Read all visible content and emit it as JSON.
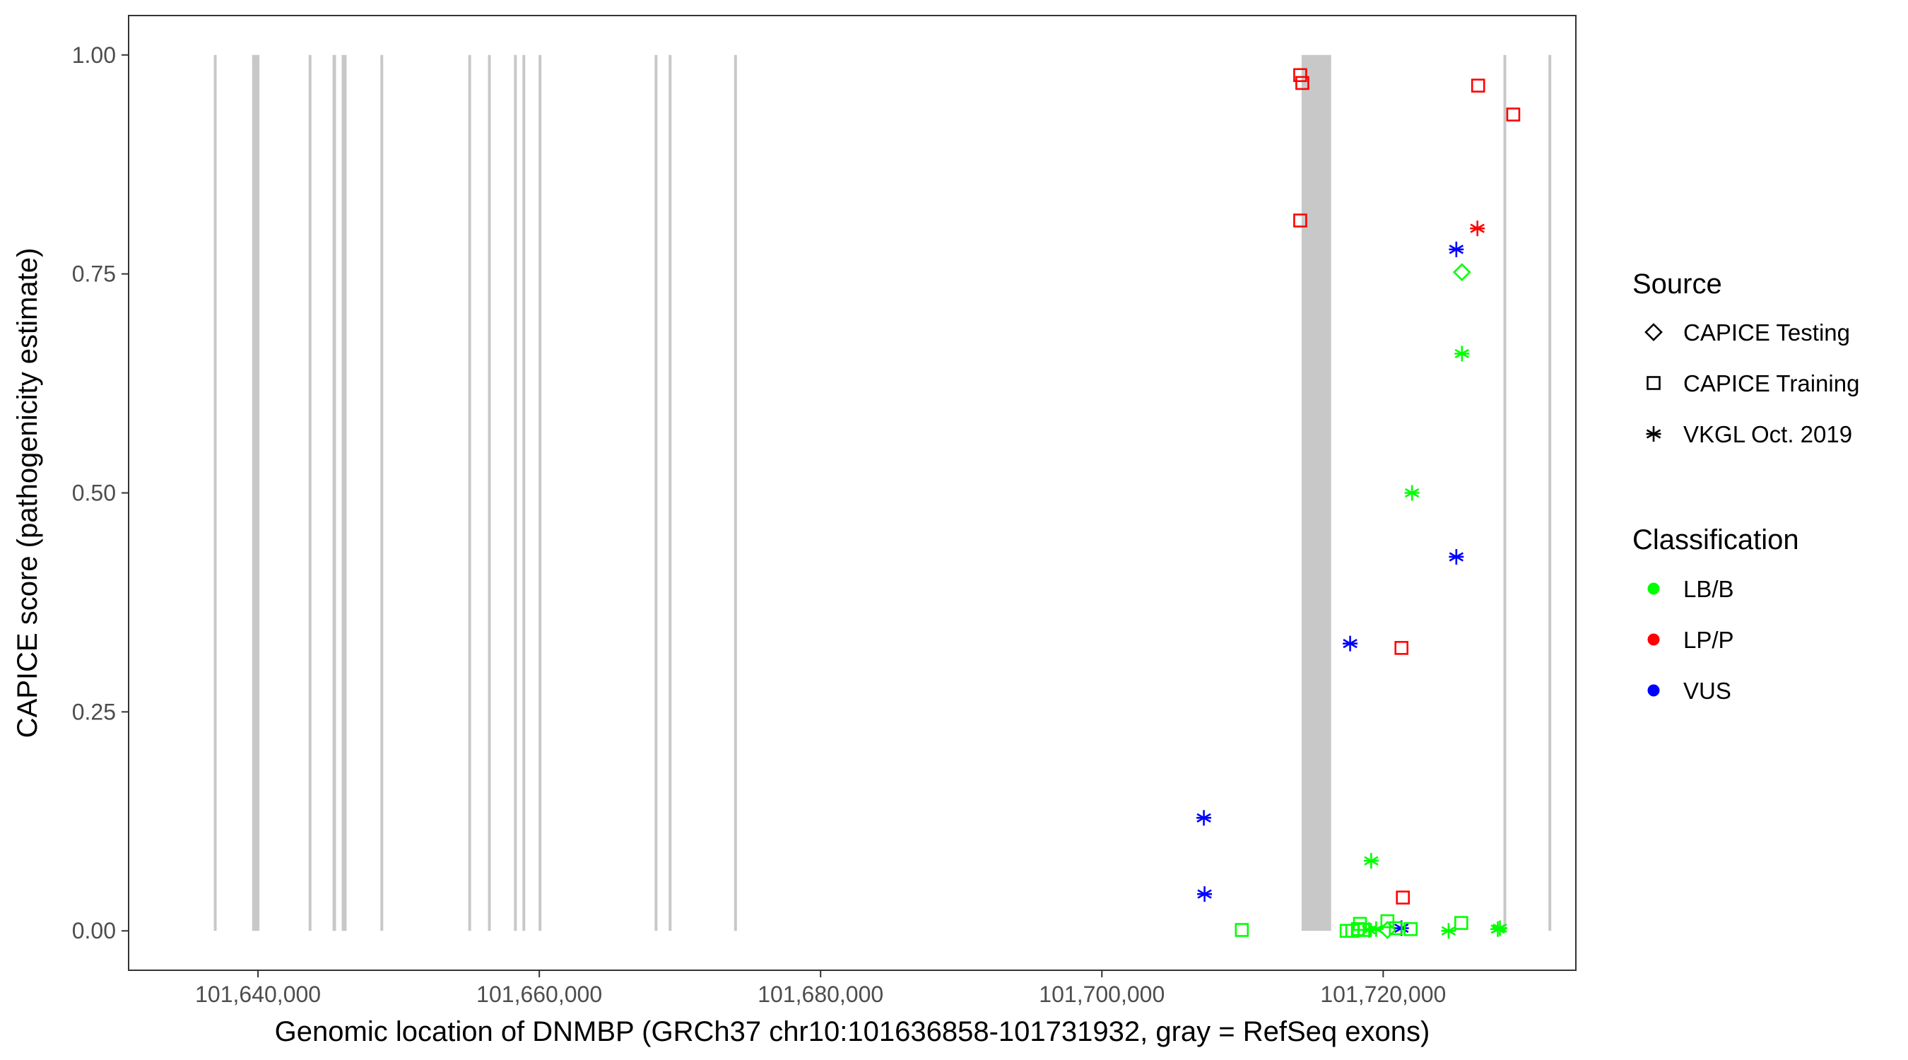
{
  "chart_data": {
    "type": "scatter",
    "xlabel": "Genomic location of DNMBP (GRCh37 chr10:101636858-101731932, gray = RefSeq exons)",
    "ylabel": "CAPICE score (pathogenicity estimate)",
    "xlim": [
      101630800,
      101733700
    ],
    "ylim": [
      -0.045,
      1.045
    ],
    "x_ticks": [
      101640000,
      101660000,
      101680000,
      101700000,
      101720000
    ],
    "x_tick_labels": [
      "101,640,000",
      "101,660,000",
      "101,680,000",
      "101,700,000",
      "101,720,000"
    ],
    "y_ticks": [
      0,
      0.25,
      0.5,
      0.75,
      1.0
    ],
    "y_tick_labels": [
      "0.00",
      "0.25",
      "0.50",
      "0.75",
      "1.00"
    ],
    "grid": false,
    "legend_position": "right",
    "exon_color": "#c8c8c8",
    "exons": [
      {
        "start": 101636858,
        "end": 101637050
      },
      {
        "start": 101639580,
        "end": 101640100
      },
      {
        "start": 101643600,
        "end": 101643800
      },
      {
        "start": 101645300,
        "end": 101645550
      },
      {
        "start": 101645950,
        "end": 101646300
      },
      {
        "start": 101648700,
        "end": 101648900
      },
      {
        "start": 101654950,
        "end": 101655150
      },
      {
        "start": 101656350,
        "end": 101656550
      },
      {
        "start": 101658200,
        "end": 101658400
      },
      {
        "start": 101658800,
        "end": 101659000
      },
      {
        "start": 101659950,
        "end": 101660150
      },
      {
        "start": 101668200,
        "end": 101668400
      },
      {
        "start": 101669200,
        "end": 101669400
      },
      {
        "start": 101673850,
        "end": 101674050
      },
      {
        "start": 101714200,
        "end": 101716300
      },
      {
        "start": 101728550,
        "end": 101728750
      },
      {
        "start": 101731750,
        "end": 101731932
      }
    ],
    "legends": {
      "source": {
        "title": "Source",
        "items": [
          {
            "label": "CAPICE Testing",
            "shape": "diamond"
          },
          {
            "label": "CAPICE Training",
            "shape": "square"
          },
          {
            "label": "VKGL Oct. 2019",
            "shape": "asterisk"
          }
        ]
      },
      "classification": {
        "title": "Classification",
        "items": [
          {
            "label": "LB/B",
            "color": "#00ff00"
          },
          {
            "label": "LP/P",
            "color": "#ff0000"
          },
          {
            "label": "VUS",
            "color": "#0000ff"
          }
        ]
      }
    },
    "series": [
      {
        "classification": "LP/P",
        "source": "CAPICE Training",
        "color": "#ff0000",
        "shape": "square",
        "points": [
          {
            "x": 101714100,
            "y": 0.977
          },
          {
            "x": 101714250,
            "y": 0.968
          },
          {
            "x": 101714100,
            "y": 0.811
          },
          {
            "x": 101726750,
            "y": 0.965
          },
          {
            "x": 101729250,
            "y": 0.932
          },
          {
            "x": 101721300,
            "y": 0.323
          },
          {
            "x": 101721400,
            "y": 0.038
          }
        ]
      },
      {
        "classification": "LP/P",
        "source": "VKGL Oct. 2019",
        "color": "#ff0000",
        "shape": "asterisk",
        "points": [
          {
            "x": 101726700,
            "y": 0.802
          }
        ]
      },
      {
        "classification": "VUS",
        "source": "VKGL Oct. 2019",
        "color": "#0000ff",
        "shape": "asterisk",
        "points": [
          {
            "x": 101725200,
            "y": 0.778
          },
          {
            "x": 101725200,
            "y": 0.427
          },
          {
            "x": 101717650,
            "y": 0.328
          },
          {
            "x": 101707250,
            "y": 0.129
          },
          {
            "x": 101707300,
            "y": 0.042
          },
          {
            "x": 101721300,
            "y": 0.003
          }
        ]
      },
      {
        "classification": "LB/B",
        "source": "CAPICE Testing",
        "color": "#00ff00",
        "shape": "diamond",
        "points": [
          {
            "x": 101725600,
            "y": 0.752
          },
          {
            "x": 101720300,
            "y": 0.001
          }
        ]
      },
      {
        "classification": "LB/B",
        "source": "VKGL Oct. 2019",
        "color": "#00ff00",
        "shape": "asterisk",
        "points": [
          {
            "x": 101725600,
            "y": 0.659
          },
          {
            "x": 101722050,
            "y": 0.5
          },
          {
            "x": 101719150,
            "y": 0.08
          },
          {
            "x": 101724650,
            "y": 0.0
          },
          {
            "x": 101728150,
            "y": 0.002
          },
          {
            "x": 101728300,
            "y": 0.003
          },
          {
            "x": 101719000,
            "y": 0.001
          },
          {
            "x": 101719500,
            "y": 0.002
          }
        ]
      },
      {
        "classification": "LB/B",
        "source": "CAPICE Training",
        "color": "#00ff00",
        "shape": "square",
        "points": [
          {
            "x": 101709950,
            "y": 0.001
          },
          {
            "x": 101717400,
            "y": 0.0
          },
          {
            "x": 101717800,
            "y": 0.0
          },
          {
            "x": 101718200,
            "y": 0.002
          },
          {
            "x": 101718350,
            "y": 0.008
          },
          {
            "x": 101718700,
            "y": 0.001
          },
          {
            "x": 101720300,
            "y": 0.011
          },
          {
            "x": 101720900,
            "y": 0.003
          },
          {
            "x": 101721950,
            "y": 0.002
          },
          {
            "x": 101725550,
            "y": 0.009
          }
        ]
      }
    ]
  }
}
